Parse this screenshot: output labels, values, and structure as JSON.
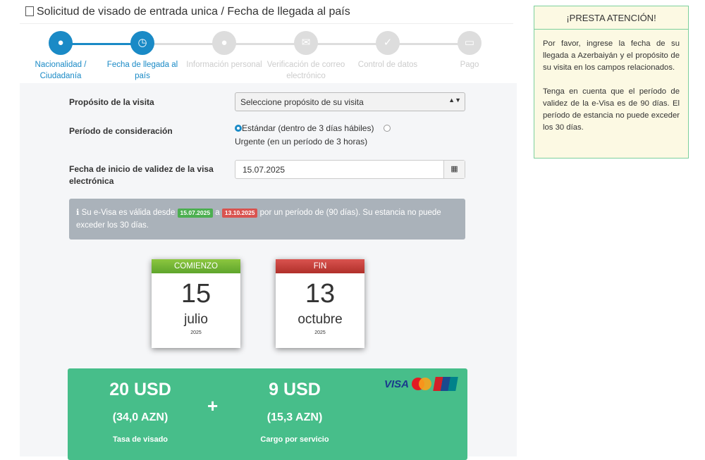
{
  "title": "Solicitud de visado de entrada unica / Fecha de llegada al país",
  "steps": [
    {
      "label": "Nacionalidad / Ciudadanía",
      "icon": "globe-icon",
      "active": true
    },
    {
      "label": "Fecha de llegada al país",
      "icon": "clock-icon",
      "active": true
    },
    {
      "label": "Información personal",
      "icon": "user-icon",
      "active": false
    },
    {
      "label": "Verificación de correo electrónico",
      "icon": "envelope-icon",
      "active": false
    },
    {
      "label": "Control de datos",
      "icon": "check-icon",
      "active": false
    },
    {
      "label": "Pago",
      "icon": "credit-card-icon",
      "active": false
    }
  ],
  "form": {
    "purpose_label": "Propósito de la visita",
    "purpose_value": "Seleccione propósito de su visita",
    "period_label": "Período de consideración",
    "standard": "Estándar (dentro de 3 días hábiles)",
    "urgent": "Urgente (en un período de 3 horas)",
    "start_label": "Fecha de inicio de validez de la visa electrónica",
    "start_value": "15.07.2025"
  },
  "info": {
    "pre": "Su e-Visa es válida desde",
    "from": "15.07.2025",
    "mid": "a",
    "to": "13.10.2025",
    "post": "por un período de (90 días). Su estancia no puede exceder los 30 días."
  },
  "start_card": {
    "header": "COMIENZO",
    "day": "15",
    "month": "julio",
    "year": "2025"
  },
  "end_card": {
    "header": "FIN",
    "day": "13",
    "month": "octubre",
    "year": "2025"
  },
  "fees": {
    "visa_usd": "20 USD",
    "visa_azn": "(34,0 AZN)",
    "visa_label": "Tasa de visado",
    "plus": "+",
    "service_usd": "9 USD",
    "service_azn": "(15,3 AZN)",
    "service_label": "Cargo por servicio",
    "visa_logo": "VISA"
  },
  "attention": {
    "title": "¡PRESTA ATENCIÓN!",
    "p1": "Por favor, ingrese la fecha de su llegada a Azerbaiyán y el propósito de su visita en los campos relacionados.",
    "p2": "Tenga en cuenta que el período de validez de la e-Visa es de 90 días. El período de estancia no puede exceder los 30 días."
  },
  "colors": {
    "accent": "#1a8ac6",
    "green": "#47be8a",
    "start": "#6fb33f",
    "end": "#c0392b"
  }
}
